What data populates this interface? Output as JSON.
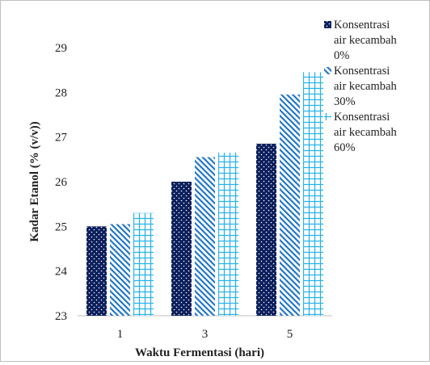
{
  "chart_data": {
    "type": "bar",
    "title": "",
    "xlabel": "Waktu Fermentasi (hari)",
    "ylabel": "Kadar Etanol (% (v/v))",
    "categories": [
      "1",
      "3",
      "5"
    ],
    "ylim": [
      23,
      29
    ],
    "yticks": [
      "23",
      "24",
      "25",
      "26",
      "27",
      "28",
      "29"
    ],
    "grid": false,
    "legend_position": "top-right",
    "series": [
      {
        "name": "Konsentrasi air kecambah 0%",
        "name_lines": [
          "Konsentrasi",
          "air kecambah",
          "0%"
        ],
        "values": [
          25.0,
          26.0,
          26.85
        ],
        "color": "#0b1f5c",
        "pattern": "dots"
      },
      {
        "name": "Konsentrasi air kecambah 30%",
        "name_lines": [
          "Konsentrasi",
          "air kecambah",
          "30%"
        ],
        "values": [
          25.05,
          26.55,
          27.95
        ],
        "color": "#2277c7",
        "pattern": "diagonal-stripes"
      },
      {
        "name": "Konsentrasi air kecambah 60%",
        "name_lines": [
          "Konsentrasi",
          "air kecambah",
          "60%"
        ],
        "values": [
          25.3,
          26.65,
          28.45
        ],
        "color": "#2bb3e8",
        "pattern": "grid"
      }
    ]
  }
}
